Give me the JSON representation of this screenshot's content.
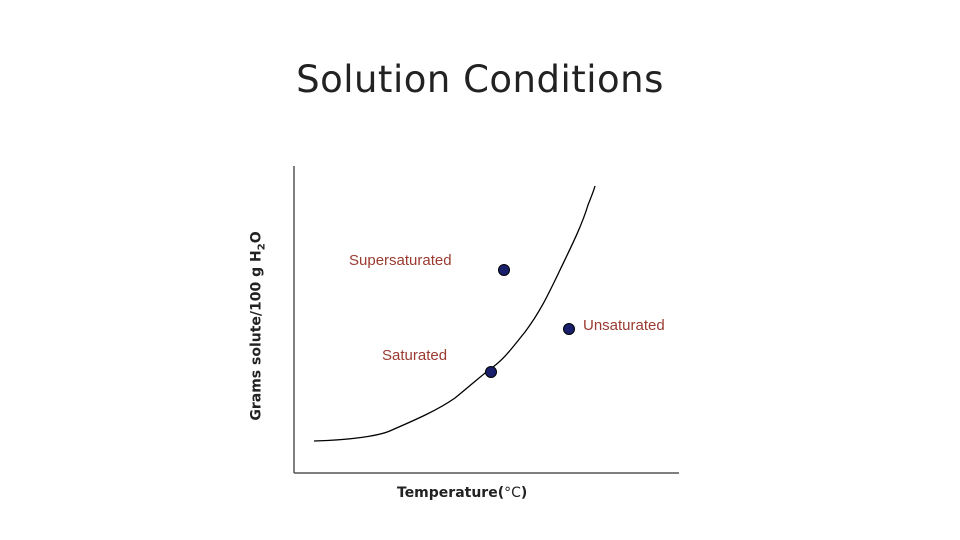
{
  "title": "Solution Conditions",
  "axes": {
    "ylabel_prefix": "Grams solute/100 g H",
    "ylabel_sub": "2",
    "ylabel_suffix": "O",
    "xlabel": "Temperature(",
    "xlabel_unit": "°C",
    "xlabel_close": ")"
  },
  "points": {
    "supersaturated": "Supersaturated",
    "unsaturated": "Unsaturated",
    "saturated": "Saturated"
  },
  "colors": {
    "point_fill": "#1a1f6b",
    "point_label": "#9a3a30",
    "curve": "#000000",
    "axis": "#555555"
  }
}
